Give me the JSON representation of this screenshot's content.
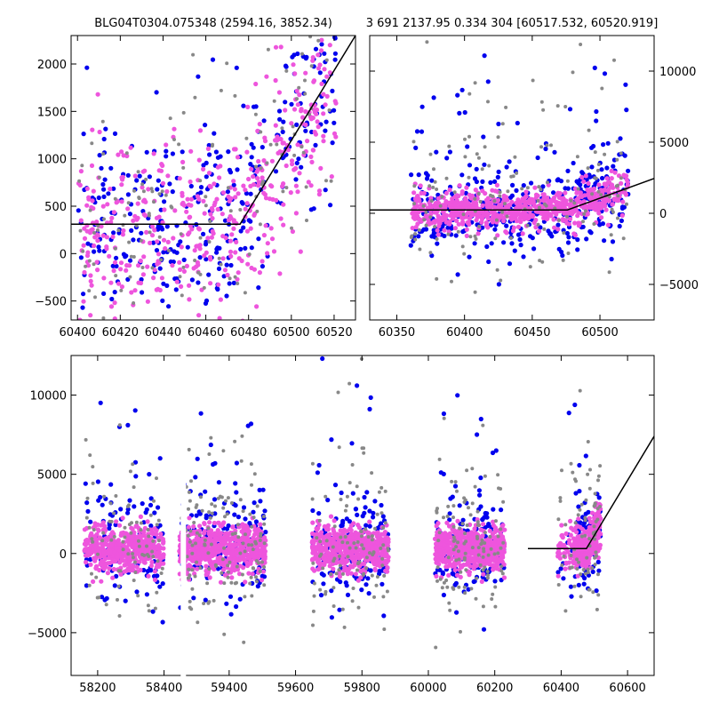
{
  "figure": {
    "title_left": "BLG04T0304.075348 (2594.16, 3852.34)",
    "title_right": "3 691 2137.95 0.334 304 [60517.532, 60520.919]"
  },
  "colors": {
    "series_a": "#0000ee",
    "series_b": "#ee55dd",
    "series_c": "#888888",
    "model": "#000000"
  },
  "chart_data": [
    {
      "id": "top-left",
      "type": "scatter",
      "title": "BLG04T0304.075348 (2594.16, 3852.34)",
      "xlim": [
        60397,
        60530
      ],
      "ylim": [
        -700,
        2300
      ],
      "xticks": [
        60400,
        60420,
        60440,
        60460,
        60480,
        60500,
        60520
      ],
      "yticks": [
        -500,
        0,
        500,
        1000,
        1500,
        2000
      ],
      "ytick_side": "left",
      "model_line": {
        "x": [
          60397,
          60476,
          60530
        ],
        "y": [
          310,
          310,
          2300
        ]
      },
      "series": [
        {
          "color_key": "series_a",
          "seed": 11,
          "count": 330
        },
        {
          "color_key": "series_b",
          "seed": 23,
          "count": 460
        },
        {
          "color_key": "series_c",
          "seed": 37,
          "count": 150
        }
      ]
    },
    {
      "id": "top-right",
      "type": "scatter",
      "title": "3 691 2137.95 0.334 304 [60517.532, 60520.919]",
      "xlim": [
        60330,
        60540
      ],
      "ylim": [
        -7500,
        12500
      ],
      "xticks": [
        60350,
        60400,
        60450,
        60500
      ],
      "yticks": [
        -5000,
        0,
        5000,
        10000
      ],
      "ytick_side": "right",
      "model_line": {
        "x": [
          60330,
          60476,
          60540
        ],
        "y": [
          240,
          240,
          2450
        ]
      },
      "series": [
        {
          "color_key": "series_a",
          "seed": 41,
          "count": 420
        },
        {
          "color_key": "series_b",
          "seed": 53,
          "count": 700
        },
        {
          "color_key": "series_c",
          "seed": 67,
          "count": 150
        }
      ]
    },
    {
      "id": "bottom",
      "type": "scatter",
      "title": "",
      "xlim": [
        58120,
        60680
      ],
      "ylim": [
        -7700,
        12500
      ],
      "xticks": [
        58200,
        58400,
        59400,
        59600,
        59800,
        60000,
        60200,
        60400,
        60600
      ],
      "yticks": [
        -5000,
        0,
        5000,
        10000
      ],
      "ytick_side": "left",
      "axis_break": [
        58450,
        59270
      ],
      "seasons": [
        [
          58160,
          58400
        ],
        [
          59250,
          59510
        ],
        [
          59650,
          59880
        ],
        [
          60020,
          60230
        ],
        [
          60390,
          60520
        ]
      ],
      "model_line": {
        "x": [
          60300,
          60476,
          60680
        ],
        "y": [
          310,
          310,
          7400
        ]
      },
      "series": [
        {
          "color_key": "series_a",
          "seed": 71,
          "count": 700
        },
        {
          "color_key": "series_b",
          "seed": 83,
          "count": 2600
        },
        {
          "color_key": "series_c",
          "seed": 97,
          "count": 500
        }
      ]
    }
  ]
}
